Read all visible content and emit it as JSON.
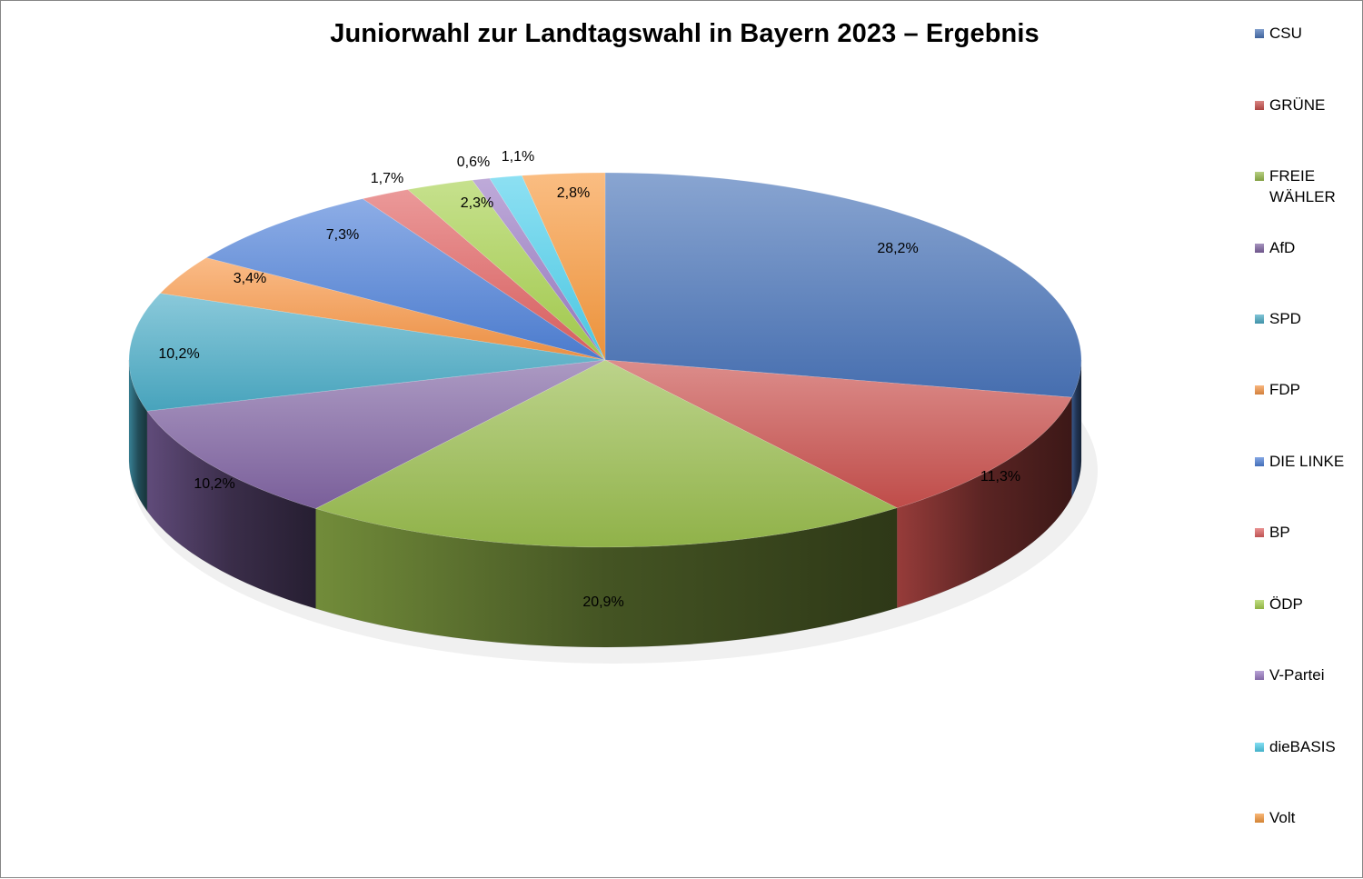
{
  "chart_data": {
    "type": "pie",
    "title": "Juniorwahl zur Landtagswahl in Bayern 2023 – Ergebnis",
    "legend_position": "right",
    "style": "3d-exploded-perspective",
    "slices": [
      {
        "name": "CSU",
        "value": 28.2,
        "label": "28,2%",
        "color": "#4a74b8"
      },
      {
        "name": "GRÜNE",
        "value": 11.3,
        "label": "11,3%",
        "color": "#c9504d"
      },
      {
        "name": "FREIE WÄHLER",
        "value": 20.9,
        "label": "20,9%",
        "color": "#98bb4d"
      },
      {
        "name": "AfD",
        "value": 10.2,
        "label": "10,2%",
        "color": "#8064a2"
      },
      {
        "name": "SPD",
        "value": 10.2,
        "label": "10,2%",
        "color": "#4bacc6"
      },
      {
        "name": "FDP",
        "value": 3.4,
        "label": "3,4%",
        "color": "#f79646"
      },
      {
        "name": "DIE LINKE",
        "value": 7.3,
        "label": "7,3%",
        "color": "#4f81d8"
      },
      {
        "name": "BP",
        "value": 1.7,
        "label": "1,7%",
        "color": "#e06262"
      },
      {
        "name": "ÖDP",
        "value": 2.3,
        "label": "2,3%",
        "color": "#a8d14f"
      },
      {
        "name": "V-Partei",
        "value": 0.6,
        "label": "0,6%",
        "color": "#9b7cc4"
      },
      {
        "name": "dieBASIS",
        "value": 1.1,
        "label": "1,1%",
        "color": "#4fd0ec"
      },
      {
        "name": "Volt",
        "value": 2.8,
        "label": "2,8%",
        "color": "#f79a3e"
      }
    ]
  },
  "legend": {
    "items": [
      "CSU",
      "GRÜNE",
      "FREIE WÄHLER",
      "AfD",
      "SPD",
      "FDP",
      "DIE LINKE",
      "BP",
      "ÖDP",
      "V-Partei",
      "dieBASIS",
      "Volt"
    ]
  }
}
